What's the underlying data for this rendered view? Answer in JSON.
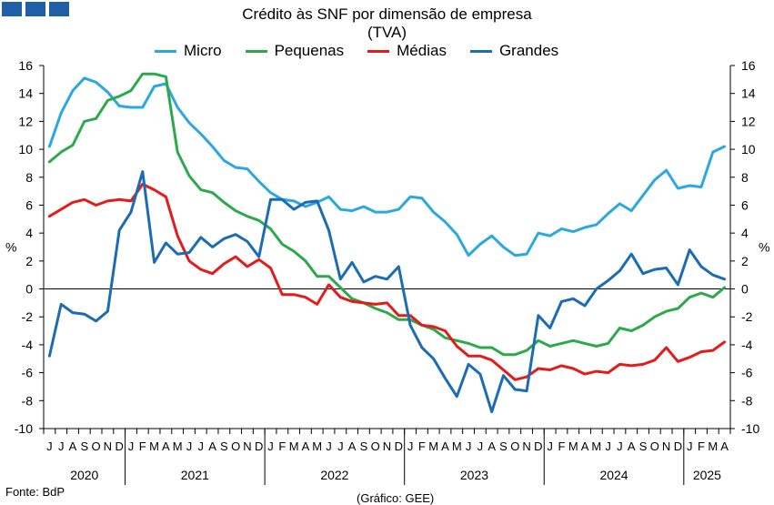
{
  "logo": {
    "icon": "bdp-logo-icon",
    "color": "#1f5fa6"
  },
  "source": "Fonte: BdP",
  "credit": "(Gráfico: GEE)",
  "chart_data": {
    "type": "line",
    "title": "Crédito às SNF por dimensão de empresa",
    "subtitle": "(TVA)",
    "ylabel_left": "%",
    "ylabel_right": "%",
    "ylim": [
      -10,
      16
    ],
    "yticks": [
      -10,
      -8,
      -6,
      -4,
      -2,
      0,
      2,
      4,
      6,
      8,
      10,
      12,
      14,
      16
    ],
    "legend_position": "top",
    "categories": [
      "J",
      "J",
      "A",
      "S",
      "O",
      "N",
      "D",
      "J",
      "F",
      "M",
      "A",
      "M",
      "J",
      "J",
      "A",
      "S",
      "O",
      "N",
      "D",
      "J",
      "F",
      "M",
      "A",
      "M",
      "J",
      "J",
      "A",
      "S",
      "O",
      "N",
      "D",
      "J",
      "F",
      "M",
      "A",
      "M",
      "J",
      "J",
      "A",
      "S",
      "O",
      "N",
      "D",
      "J",
      "F",
      "M",
      "A",
      "M",
      "J",
      "J",
      "A",
      "S",
      "O",
      "N",
      "D",
      "J",
      "F",
      "M",
      "A"
    ],
    "years": [
      {
        "label": "2020",
        "months": 7
      },
      {
        "label": "2021",
        "months": 12
      },
      {
        "label": "2022",
        "months": 12
      },
      {
        "label": "2023",
        "months": 12
      },
      {
        "label": "2024",
        "months": 12
      },
      {
        "label": "2025",
        "months": 4
      }
    ],
    "series": [
      {
        "name": "Micro",
        "color": "#2ba8e0",
        "values": [
          10.2,
          12.6,
          14.2,
          15.1,
          14.8,
          14.1,
          13.1,
          13.0,
          13.0,
          14.5,
          14.7,
          13.0,
          11.9,
          11.1,
          10.2,
          9.2,
          8.7,
          8.6,
          7.7,
          6.9,
          6.4,
          6.3,
          5.9,
          6.2,
          6.6,
          5.7,
          5.6,
          5.9,
          5.5,
          5.5,
          5.7,
          6.6,
          6.5,
          5.5,
          4.8,
          3.9,
          2.4,
          3.2,
          3.8,
          3.0,
          2.4,
          2.5,
          4.0,
          3.8,
          4.3,
          4.1,
          4.4,
          4.6,
          5.4,
          6.1,
          5.6,
          6.7,
          7.8,
          8.5,
          7.2,
          7.4,
          7.3,
          9.8,
          10.2
        ]
      },
      {
        "name": "Pequenas",
        "color": "#2ca94a",
        "values": [
          9.1,
          9.8,
          10.3,
          12.0,
          12.2,
          13.5,
          13.8,
          14.2,
          15.4,
          15.4,
          15.2,
          9.8,
          8.1,
          7.1,
          6.9,
          6.2,
          5.6,
          5.2,
          4.9,
          4.3,
          3.2,
          2.7,
          2.0,
          0.9,
          0.9,
          0.1,
          -0.7,
          -1.0,
          -1.4,
          -1.7,
          -2.2,
          -2.2,
          -2.6,
          -2.9,
          -3.5,
          -3.7,
          -3.9,
          -4.2,
          -4.2,
          -4.7,
          -4.7,
          -4.4,
          -3.7,
          -4.1,
          -3.9,
          -3.7,
          -3.9,
          -4.1,
          -3.9,
          -2.8,
          -3.0,
          -2.6,
          -2.0,
          -1.6,
          -1.4,
          -0.6,
          -0.3,
          -0.6,
          0.1
        ]
      },
      {
        "name": "Médias",
        "color": "#e41b1b",
        "values": [
          5.2,
          5.7,
          6.2,
          6.4,
          6.0,
          6.3,
          6.4,
          6.3,
          7.5,
          7.1,
          6.6,
          3.8,
          2.0,
          1.4,
          1.1,
          1.8,
          2.3,
          1.6,
          2.1,
          1.5,
          -0.4,
          -0.4,
          -0.6,
          -1.1,
          0.3,
          -0.6,
          -0.9,
          -1.0,
          -1.1,
          -1.0,
          -1.9,
          -1.9,
          -2.6,
          -2.7,
          -3.0,
          -4.1,
          -4.8,
          -4.8,
          -5.1,
          -5.8,
          -6.5,
          -6.3,
          -5.7,
          -5.8,
          -5.5,
          -5.7,
          -6.1,
          -5.9,
          -6.0,
          -5.4,
          -5.5,
          -5.4,
          -5.1,
          -4.2,
          -5.2,
          -4.9,
          -4.5,
          -4.4,
          -3.8
        ]
      },
      {
        "name": "Grandes",
        "color": "#1b6cb5",
        "values": [
          -4.8,
          -1.1,
          -1.7,
          -1.8,
          -2.3,
          -1.6,
          4.2,
          5.5,
          8.4,
          1.9,
          3.3,
          2.5,
          2.6,
          3.7,
          3.0,
          3.6,
          3.9,
          3.4,
          2.3,
          6.4,
          6.4,
          5.7,
          6.2,
          6.3,
          4.2,
          0.7,
          1.9,
          0.5,
          0.9,
          0.7,
          1.6,
          -2.6,
          -4.2,
          -5.0,
          -6.4,
          -7.7,
          -5.4,
          -6.1,
          -8.8,
          -6.2,
          -7.2,
          -7.3,
          -1.9,
          -2.8,
          -0.9,
          -0.7,
          -1.2,
          0.0,
          0.6,
          1.3,
          2.5,
          1.1,
          1.4,
          1.5,
          0.3,
          2.8,
          1.6,
          1.0,
          0.7
        ]
      }
    ]
  }
}
